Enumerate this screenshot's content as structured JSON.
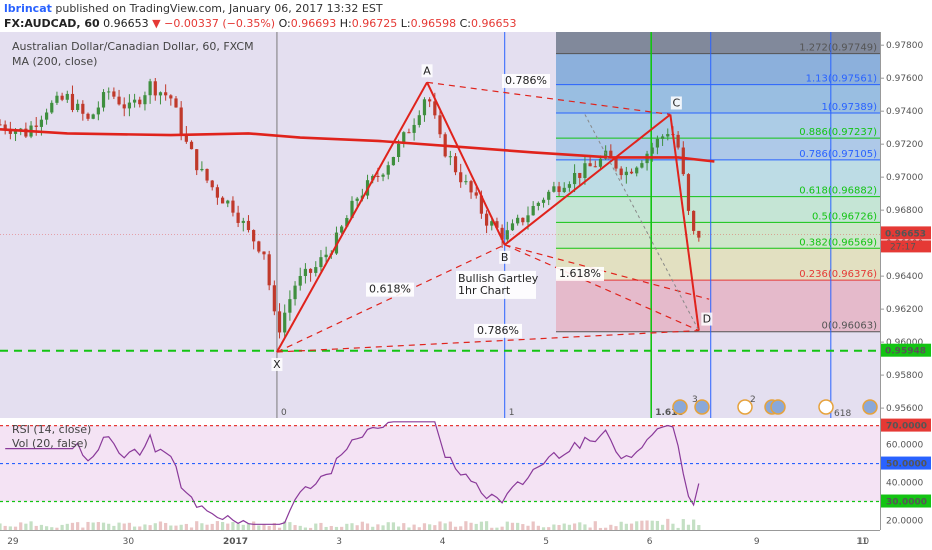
{
  "header": {
    "user": "lbrincat",
    "published_text": "published on TradingView.com, January 06, 2017 13:32 EST",
    "symbol": "FX:AUDCAD, 60",
    "last": "0.96653",
    "change": "−0.00337 (−0.35%)",
    "open_label": "O:",
    "open": "0.96693",
    "high_label": "H:",
    "high": "0.96725",
    "low_label": "L:",
    "low": "0.96598",
    "close_label": "C:",
    "close": "0.96653"
  },
  "legend": {
    "instrument": "Australian Dollar/Canadian Dollar, 60, FXCM",
    "ma": "MA (200, close)",
    "rsi": "RSI (14, close)",
    "vol": "Vol (20, false)"
  },
  "colors": {
    "candle_up": "#3f8f3f",
    "candle_down": "#c0392b",
    "ma_line": "#e0231c",
    "pattern": "#e0231c",
    "support": "#13c413",
    "fib_blue": "#2962ff",
    "fib_green": "#13c413",
    "bg_purple": "#dcd5ec"
  },
  "chart_data": {
    "type": "candlestick",
    "price_axis_ticks": [
      "0.97800",
      "0.97600",
      "0.97400",
      "0.97200",
      "0.97000",
      "0.96800",
      "0.96600",
      "0.96400",
      "0.96200",
      "0.96000",
      "0.95800",
      "0.95600"
    ],
    "ylim": [
      0.9554,
      0.9788
    ],
    "time_axis_labels": [
      "29",
      "30",
      "2017",
      "3",
      "4",
      "5",
      "6",
      "9",
      "10",
      "11"
    ],
    "current_price_label": "0.96653",
    "countdown_label": "27:17",
    "support_label": "0.95948",
    "fib_retracement": [
      {
        "label": "1.272(0.97749)",
        "value": 0.97749,
        "color": "#555555"
      },
      {
        "label": "1.13(0.97561)",
        "value": 0.97561,
        "color": "#2962ff"
      },
      {
        "label": "1(0.97389)",
        "value": 0.97389,
        "color": "#2962ff"
      },
      {
        "label": "0.886(0.97237)",
        "value": 0.97237,
        "color": "#13c413"
      },
      {
        "label": "0.786(0.97105)",
        "value": 0.97105,
        "color": "#2962ff"
      },
      {
        "label": "0.618(0.96882)",
        "value": 0.96882,
        "color": "#13c413"
      },
      {
        "label": "0.5(0.96726)",
        "value": 0.96726,
        "color": "#13c413"
      },
      {
        "label": "0.382(0.96569)",
        "value": 0.96569,
        "color": "#13c413"
      },
      {
        "label": "0.236(0.96376)",
        "value": 0.96376,
        "color": "#e53935"
      },
      {
        "label": "0(0.96063)",
        "value": 0.96063,
        "color": "#555555"
      }
    ],
    "pattern_points": [
      {
        "label": "X",
        "price": 0.9594
      },
      {
        "label": "A",
        "price": 0.97575
      },
      {
        "label": "B",
        "price": 0.9659
      },
      {
        "label": "C",
        "price": 0.9738
      },
      {
        "label": "D",
        "price": 0.9607
      }
    ],
    "ratio_labels": [
      "0.786%",
      "0.618%",
      "1.618%",
      "0.786%"
    ],
    "annotation_lines": [
      "Bullish Gartley",
      "1hr Chart"
    ],
    "time_markers": [
      "0",
      "1",
      "1.618"
    ],
    "event_badges": [
      "3",
      "2"
    ],
    "event_badge_extra": "618",
    "rsi": {
      "ticks": [
        "70.0000",
        "60.0000",
        "50.0000",
        "40.0000",
        "30.0000",
        "20.0000"
      ],
      "ylim": [
        15,
        74
      ],
      "last": 39.5
    }
  }
}
